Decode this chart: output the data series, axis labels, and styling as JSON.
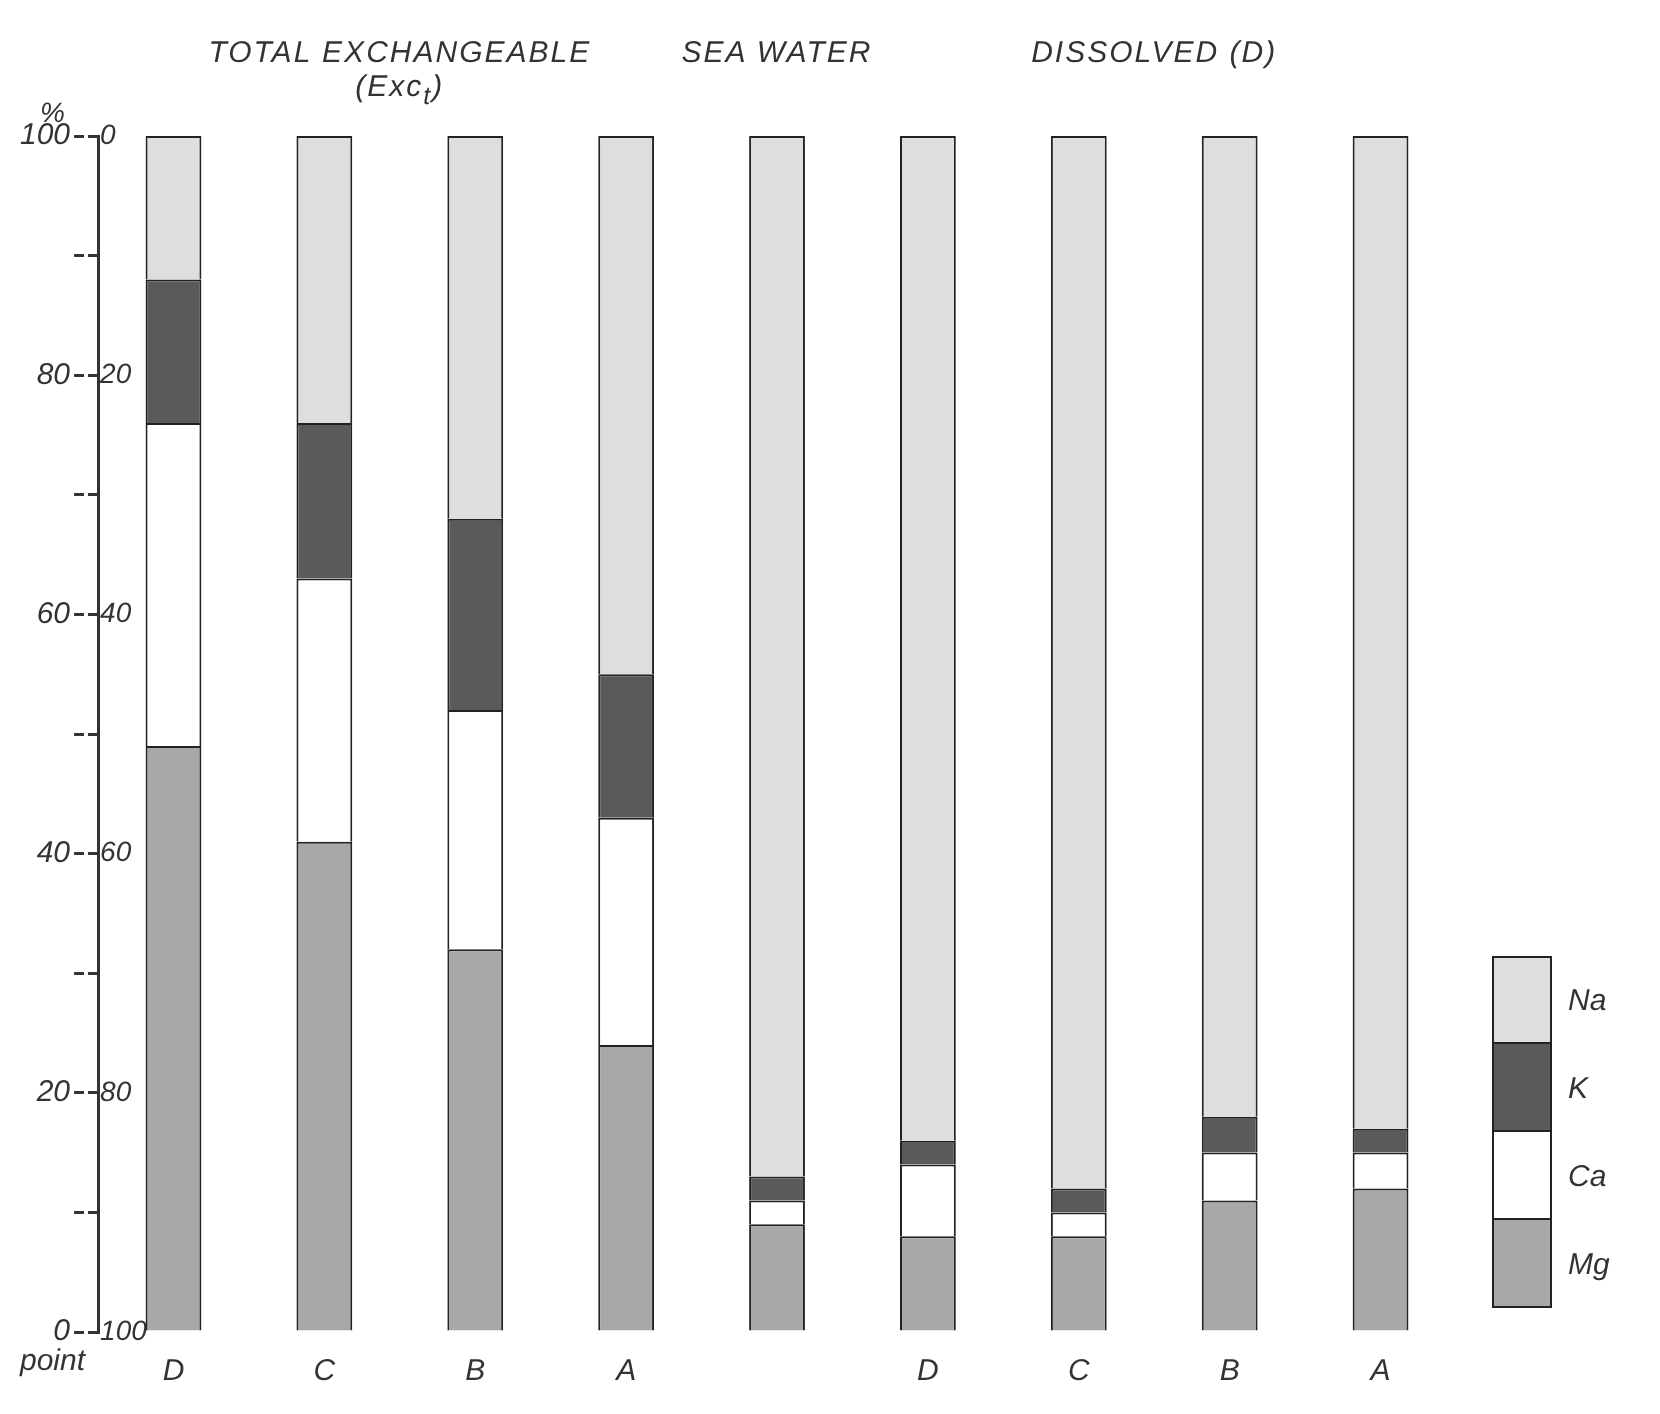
{
  "chart_data": {
    "type": "bar",
    "stacked": true,
    "ylabel": "%",
    "xlabel": "point",
    "categories": [
      "D",
      "C",
      "B",
      "A",
      null,
      "D",
      "C",
      "B",
      "A"
    ],
    "series": [
      {
        "name": "Mg",
        "color": "#a8a8a8",
        "values": [
          49,
          41,
          32,
          24,
          9,
          8,
          8,
          11,
          12
        ]
      },
      {
        "name": "Ca",
        "color": "#ffffff",
        "values": [
          27,
          22,
          20,
          19,
          2,
          6,
          2,
          4,
          3
        ]
      },
      {
        "name": "K",
        "color": "#5a5a5a",
        "values": [
          12,
          13,
          16,
          12,
          2,
          2,
          2,
          3,
          2
        ]
      },
      {
        "name": "Na",
        "color": "#dedede",
        "values": [
          12,
          24,
          32,
          45,
          87,
          84,
          88,
          82,
          83
        ]
      }
    ],
    "ylim": [
      0,
      100
    ],
    "yticks": [
      0,
      {
        "value": 10,
        "label": null
      },
      20,
      {
        "value": 30,
        "label": null
      },
      40,
      {
        "value": 50,
        "label": null
      },
      60,
      {
        "value": 70,
        "label": null
      },
      80,
      {
        "value": 90,
        "label": null
      },
      100
    ],
    "y2lim": [
      100,
      0
    ],
    "y2ticks": [
      0,
      {
        "value": 10,
        "label": null
      },
      20,
      {
        "value": 30,
        "label": null
      },
      40,
      {
        "value": 50,
        "label": null
      },
      60,
      {
        "value": 70,
        "label": null
      },
      80,
      {
        "value": 90,
        "label": null
      },
      100
    ],
    "annotations": [
      "TOTAL EXCHANGEABLE (Exc$_{t}$)",
      "SEA WATER",
      "DISSOLVED (D)"
    ],
    "legend": "right",
    "grid": false
  }
}
